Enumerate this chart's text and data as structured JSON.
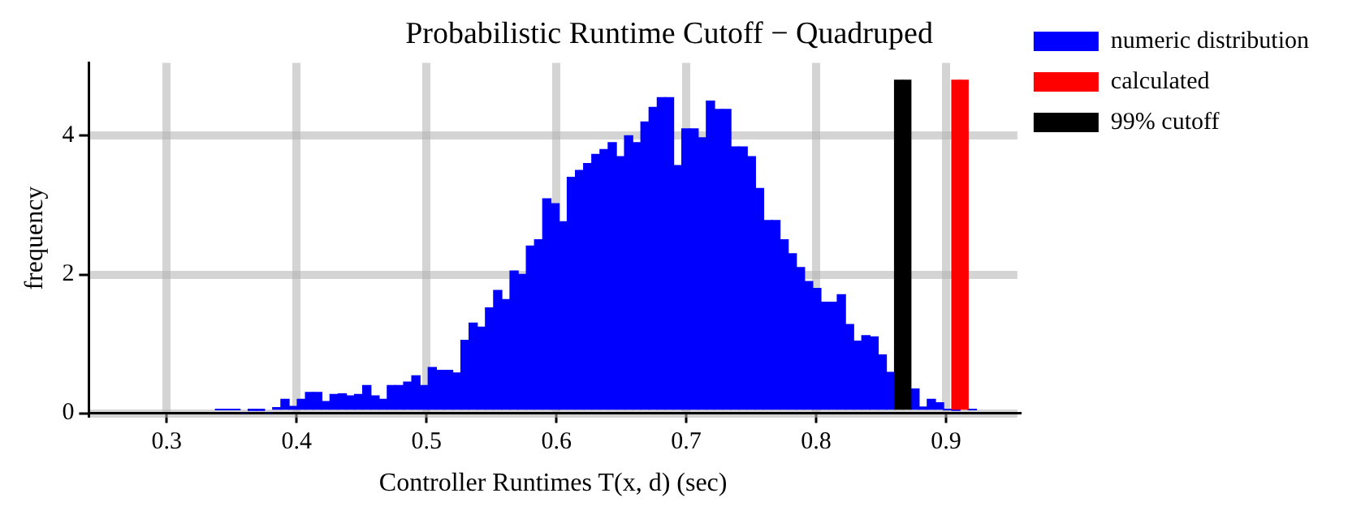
{
  "chart_data": {
    "type": "histogram",
    "title": "Probabilistic Runtime Cutoff − Quadruped",
    "xlabel": "Controller Runtimes T(x, d) (sec)",
    "ylabel": "frequency",
    "xlim": [
      0.24,
      0.955
    ],
    "ylim": [
      0,
      5.05
    ],
    "xticks": [
      0.3,
      0.4,
      0.5,
      0.6,
      0.7,
      0.8,
      0.9
    ],
    "yticks": [
      0,
      2,
      4
    ],
    "grid": true,
    "legend": "top right",
    "bins": [
      0.3375,
      0.3438,
      0.3501,
      0.3564,
      0.3627,
      0.369,
      0.3753,
      0.3816,
      0.3879,
      0.3942,
      0.4005,
      0.4068,
      0.4131,
      0.4194,
      0.4257,
      0.432,
      0.4383,
      0.4446,
      0.4509,
      0.4572,
      0.4635,
      0.4698,
      0.4761,
      0.4824,
      0.4887,
      0.495,
      0.5013,
      0.5076,
      0.5139,
      0.5202,
      0.5265,
      0.5328,
      0.5391,
      0.5454,
      0.5517,
      0.558,
      0.5643,
      0.5706,
      0.5769,
      0.5832,
      0.5895,
      0.5958,
      0.6021,
      0.6084,
      0.6147,
      0.621,
      0.6273,
      0.6336,
      0.6399,
      0.6462,
      0.6525,
      0.6588,
      0.6651,
      0.6714,
      0.6777,
      0.684,
      0.6903,
      0.6966,
      0.7029,
      0.7092,
      0.7155,
      0.7218,
      0.7281,
      0.7344,
      0.7407,
      0.747,
      0.7533,
      0.7596,
      0.7659,
      0.7722,
      0.7785,
      0.7848,
      0.7911,
      0.7974,
      0.8037,
      0.81,
      0.8163,
      0.8226,
      0.8289,
      0.8352,
      0.8415,
      0.8478,
      0.8541,
      0.8604,
      0.8667,
      0.873,
      0.8793,
      0.8856,
      0.8919,
      0.8982,
      0.9045,
      0.9108,
      0.9171,
      0.9234
    ],
    "series": [
      {
        "name": "numeric distribution",
        "color": "#0000ff",
        "values": [
          0.05,
          0.05,
          0.05,
          0,
          0.04,
          0.04,
          0,
          0.08,
          0.2,
          0.1,
          0.2,
          0.3,
          0.3,
          0.17,
          0.27,
          0.28,
          0.25,
          0.27,
          0.4,
          0.25,
          0.2,
          0.4,
          0.4,
          0.45,
          0.54,
          0.4,
          0.66,
          0.62,
          0.62,
          0.58,
          1.05,
          1.3,
          1.24,
          1.52,
          1.77,
          1.64,
          2.05,
          2.0,
          2.41,
          2.5,
          3.09,
          3.02,
          2.76,
          3.4,
          3.5,
          3.6,
          3.73,
          3.8,
          3.9,
          3.7,
          4.0,
          3.9,
          4.2,
          4.41,
          4.55,
          4.55,
          3.57,
          4.1,
          4.1,
          3.97,
          4.5,
          4.38,
          4.38,
          3.84,
          3.84,
          3.7,
          3.24,
          2.78,
          2.78,
          2.5,
          2.3,
          2.1,
          1.9,
          1.8,
          1.6,
          1.6,
          1.71,
          1.28,
          1.04,
          1.12,
          1.1,
          0.84,
          0.59,
          null,
          null,
          0.35,
          0.09,
          0.2,
          0.15,
          0.05,
          0.04,
          null,
          0.05
        ]
      },
      {
        "name": "calculated",
        "color": "#ff0000",
        "values": [
          null,
          null,
          null,
          null,
          null,
          null,
          null,
          null,
          null,
          null,
          null,
          null,
          null,
          null,
          null,
          null,
          null,
          null,
          null,
          null,
          null,
          null,
          null,
          null,
          null,
          null,
          null,
          null,
          null,
          null,
          null,
          null,
          null,
          null,
          null,
          null,
          null,
          null,
          null,
          null,
          null,
          null,
          null,
          null,
          null,
          null,
          null,
          null,
          null,
          null,
          null,
          null,
          null,
          null,
          null,
          null,
          null,
          null,
          null,
          null,
          null,
          null,
          null,
          null,
          null,
          null,
          null,
          null,
          null,
          null,
          null,
          null,
          null,
          null,
          null,
          null,
          null,
          null,
          null,
          null,
          null,
          null,
          null,
          null,
          null,
          null,
          null,
          null,
          null,
          null,
          4.8,
          4.8,
          null
        ]
      },
      {
        "name": "99% cutoff",
        "color": "#000000",
        "values": [
          null,
          null,
          null,
          null,
          null,
          null,
          null,
          null,
          null,
          null,
          null,
          null,
          null,
          null,
          null,
          null,
          null,
          null,
          null,
          null,
          null,
          null,
          null,
          null,
          null,
          null,
          null,
          null,
          null,
          null,
          null,
          null,
          null,
          null,
          null,
          null,
          null,
          null,
          null,
          null,
          null,
          null,
          null,
          null,
          null,
          null,
          null,
          null,
          null,
          null,
          null,
          null,
          null,
          null,
          null,
          null,
          null,
          null,
          null,
          null,
          null,
          null,
          null,
          null,
          null,
          null,
          null,
          null,
          null,
          null,
          null,
          null,
          null,
          null,
          null,
          null,
          null,
          null,
          null,
          null,
          null,
          null,
          null,
          4.8,
          4.8,
          null,
          null,
          null,
          null,
          null,
          null,
          null,
          null
        ]
      }
    ]
  }
}
